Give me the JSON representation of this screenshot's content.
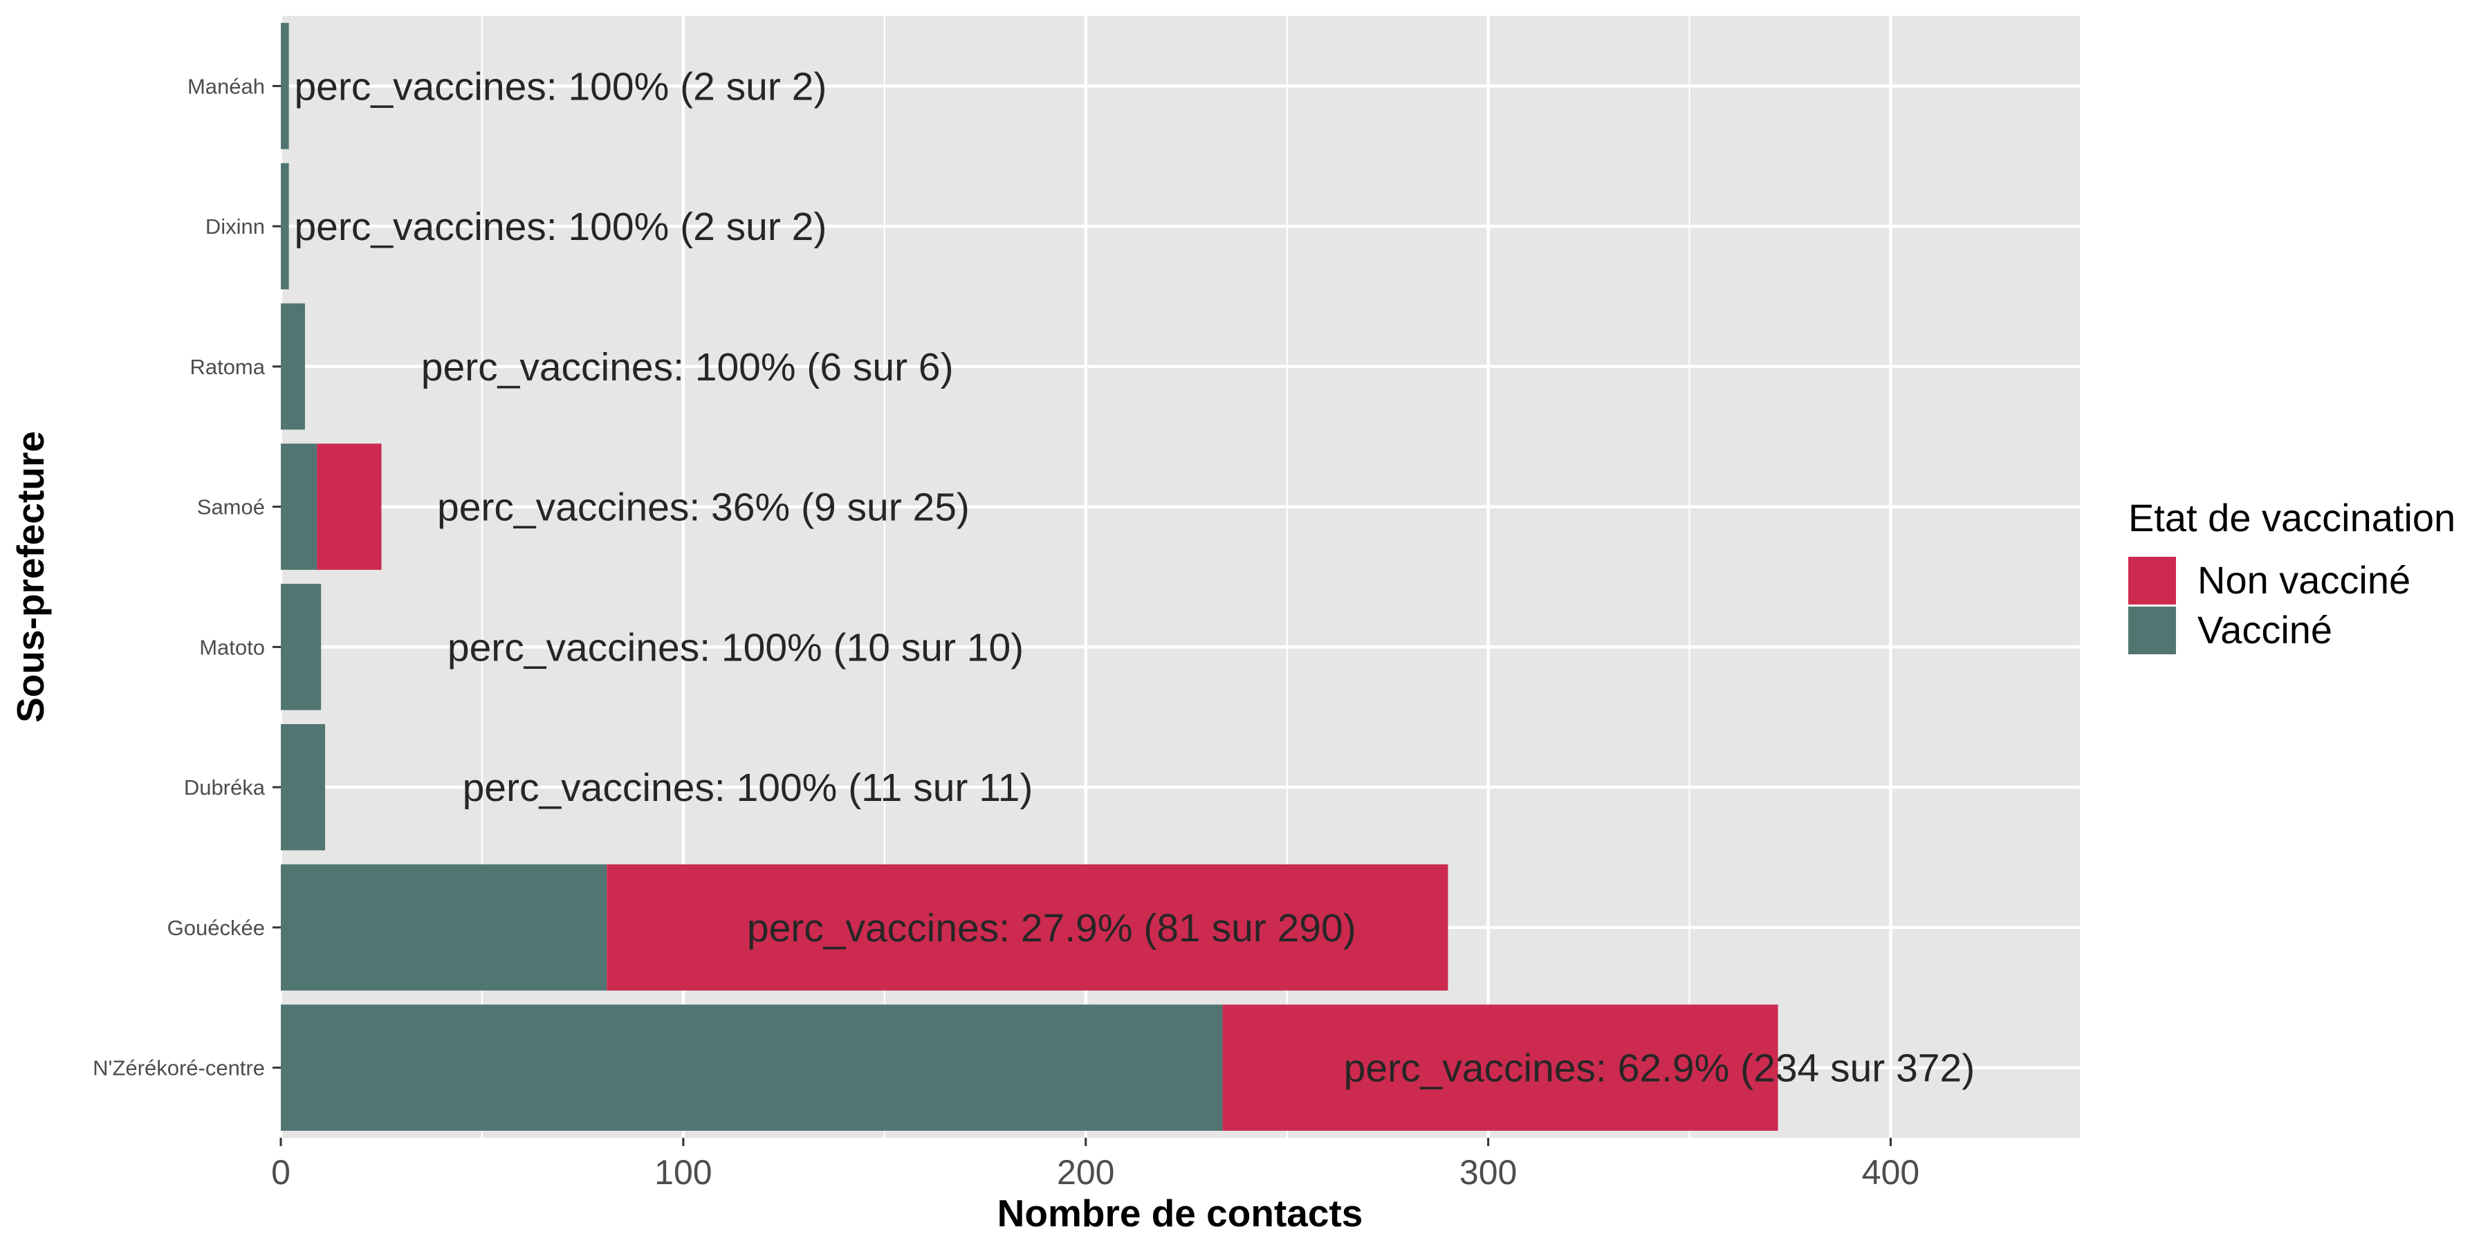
{
  "chart_data": {
    "type": "bar",
    "orientation": "horizontal",
    "stacked": true,
    "xlabel": "Nombre de contacts",
    "ylabel": "Sous-prefecture",
    "xlim": [
      0,
      447
    ],
    "x_ticks": [
      0,
      100,
      200,
      300,
      400
    ],
    "grid": true,
    "legend": {
      "title": "Etat de vaccination",
      "position": "right",
      "entries": [
        {
          "name": "Non vacciné",
          "color": "#cc2a4f"
        },
        {
          "name": "Vacciné",
          "color": "#517672"
        }
      ]
    },
    "categories": [
      "Manéah",
      "Dixinn",
      "Ratoma",
      "Samoé",
      "Matoto",
      "Dubréka",
      "Gouéckée",
      "N'Zérékoré-centre"
    ],
    "series": [
      {
        "name": "Vacciné",
        "color": "#517672",
        "values": [
          2,
          2,
          6,
          9,
          10,
          11,
          81,
          234
        ]
      },
      {
        "name": "Non vacciné",
        "color": "#cc2a4f",
        "values": [
          0,
          0,
          0,
          16,
          0,
          0,
          209,
          138
        ]
      }
    ],
    "bar_labels": [
      "perc_vaccines: 100% (2 sur 2)",
      "perc_vaccines: 100% (2 sur 2)",
      "perc_vaccines: 100% (6 sur 6)",
      "perc_vaccines: 36% (9 sur 25)",
      "perc_vaccines: 100% (10 sur 10)",
      "perc_vaccines: 100% (11 sur 11)",
      "perc_vaccines: 27.9% (81 sur 290)",
      "perc_vaccines: 62.9% (234 sur 372)"
    ],
    "label_positions_data_units": [
      69.5,
      69.5,
      101,
      105,
      113,
      116,
      191.5,
      342.5
    ]
  }
}
